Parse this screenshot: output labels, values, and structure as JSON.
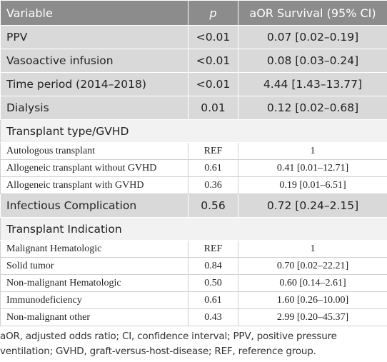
{
  "header": {
    "variable": "Variable",
    "p": "p",
    "aor": "aOR Survival (95% CI)"
  },
  "rows_top": [
    {
      "variable": "PPV",
      "p": "<0.01",
      "aor": "0.07 [0.02–0.19]"
    },
    {
      "variable": "Vasoactive infusion",
      "p": "<0.01",
      "aor": "0.08 [0.03–0.24]"
    },
    {
      "variable": "Time period (2014–2018)",
      "p": "<0.01",
      "aor": "4.44 [1.43–13.77]"
    },
    {
      "variable": "Dialysis",
      "p": "0.01",
      "aor": "0.12 [0.02–0.68]"
    }
  ],
  "section_transplant_type": "Transplant type/GVHD",
  "rows_transplant_type": [
    {
      "variable": "Autologous transplant",
      "p": "REF",
      "aor": "1"
    },
    {
      "variable": "Allogeneic transplant without GVHD",
      "p": "0.61",
      "aor": "0.41 [0.01–12.71]"
    },
    {
      "variable": "Allogeneic transplant with GVHD",
      "p": "0.36",
      "aor": "0.19 [0.01–6.51]"
    }
  ],
  "row_infectious": {
    "variable": "Infectious Complication",
    "p": "0.56",
    "aor": "0.72 [0.24–2.15]"
  },
  "section_indication": "Transplant Indication",
  "rows_indication": [
    {
      "variable": "Malignant Hematologic",
      "p": "REF",
      "aor": "1"
    },
    {
      "variable": "Solid tumor",
      "p": "0.84",
      "aor": "0.70 [0.02–22.21]"
    },
    {
      "variable": "Non-malignant Hematologic",
      "p": "0.50",
      "aor": "0.60 [0.14–2.61]"
    },
    {
      "variable": "Immunodeficiency",
      "p": "0.61",
      "aor": "1.60 [0.26–10.00]"
    },
    {
      "variable": "Non-malignant other",
      "p": "0.43",
      "aor": "2.99 [0.20–45.37]"
    }
  ],
  "footnote": "aOR, adjusted odds ratio; CI, confidence interval; PPV, positive pressure ventilation; GVHD, graft-versus-host-disease; REF, reference group."
}
